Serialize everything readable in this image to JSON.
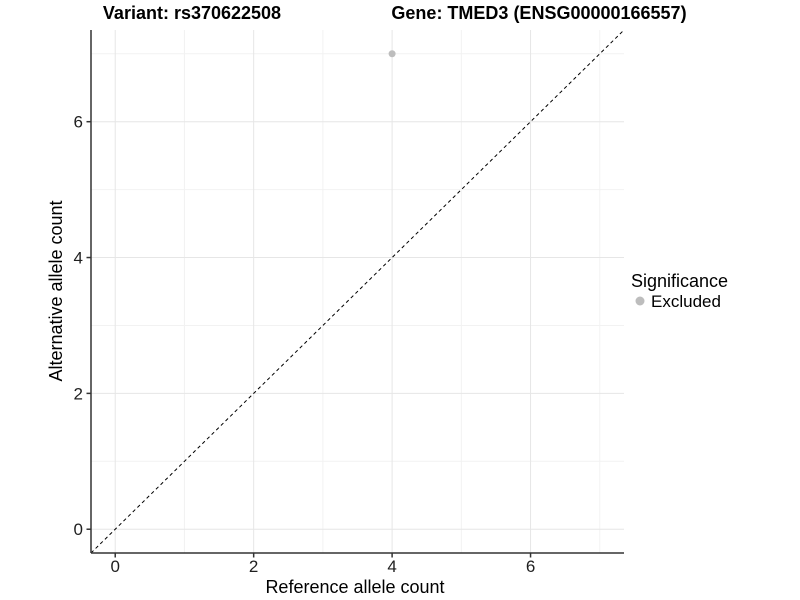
{
  "chart_data": {
    "type": "scatter",
    "title_left": "Variant: rs370622508",
    "title_right": "Gene: TMED3 (ENSG00000166557)",
    "xlabel": "Reference allele count",
    "ylabel": "Alternative allele count",
    "xlim": [
      -0.35,
      7.35
    ],
    "ylim": [
      -0.35,
      7.35
    ],
    "xticks": [
      0,
      2,
      4,
      6
    ],
    "yticks": [
      0,
      2,
      4,
      6
    ],
    "minor_ticks": [
      1,
      3,
      5,
      7
    ],
    "grid": "major+minor",
    "identity_line": {
      "type": "abline",
      "slope": 1,
      "intercept": 0,
      "style": "dashed",
      "color": "#000000"
    },
    "series": [
      {
        "name": "Excluded",
        "color": "#bdbdbd",
        "points": [
          {
            "x": 4,
            "y": 7
          }
        ]
      }
    ],
    "legend": {
      "title": "Significance",
      "position": "right",
      "items": [
        {
          "label": "Excluded",
          "color": "#bdbdbd"
        }
      ]
    }
  },
  "colors": {
    "background": "#ffffff",
    "grid_major": "#e6e6e6",
    "grid_minor": "#f2f2f2",
    "axis_line": "#333333",
    "tick_mark": "#333333"
  }
}
